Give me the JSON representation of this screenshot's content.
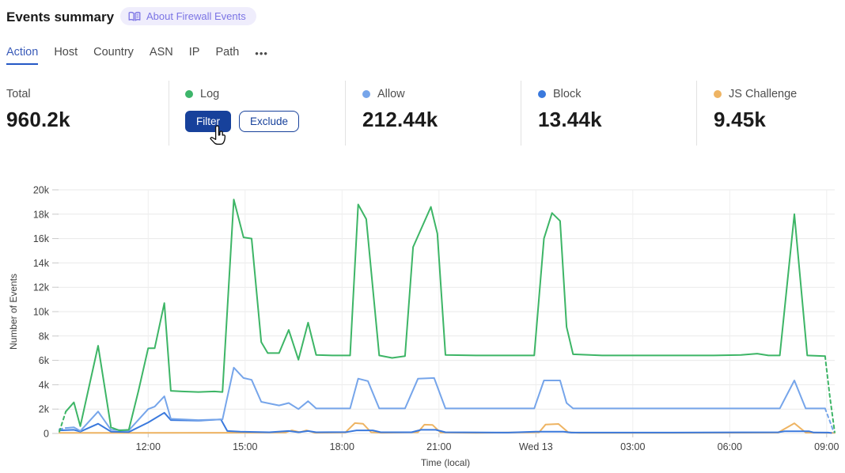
{
  "header": {
    "title": "Events summary",
    "badge": {
      "label": "About Firewall Events",
      "icon": "book-icon",
      "bg": "#efedfc",
      "color": "#7b74e4"
    }
  },
  "tabs": {
    "items": [
      {
        "label": "Action",
        "active": true
      },
      {
        "label": "Host",
        "active": false
      },
      {
        "label": "Country",
        "active": false
      },
      {
        "label": "ASN",
        "active": false
      },
      {
        "label": "IP",
        "active": false
      },
      {
        "label": "Path",
        "active": false
      }
    ],
    "more_label": "•••",
    "active_color": "#2458c5"
  },
  "stats": {
    "cards": [
      {
        "label": "Total",
        "value": "960.2k"
      },
      {
        "label": "Log",
        "dot_color": "#3db56a",
        "buttons": [
          {
            "label": "Filter",
            "style": "primary"
          },
          {
            "label": "Exclude",
            "style": "secondary"
          }
        ]
      },
      {
        "label": "Allow",
        "dot_color": "#76a5ea",
        "value": "212.44k"
      },
      {
        "label": "Block",
        "dot_color": "#3a79dd",
        "value": "13.44k"
      },
      {
        "label": "JS Challenge",
        "dot_color": "#eeb463",
        "value": "9.45k"
      }
    ],
    "button_blue": "#17419b"
  },
  "chart_data": {
    "type": "line",
    "title": "",
    "xlabel": "Time (local)",
    "ylabel": "Number of Events",
    "ylim": [
      0,
      20000
    ],
    "values_unit": "thousands of events",
    "x_unit": "hours from chart start (approx 09:15 local, spans 24h)",
    "grid": true,
    "legend_position": "stat-cards above chart",
    "y_ticks": [
      {
        "v": 0,
        "label": "0"
      },
      {
        "v": 2,
        "label": "2k"
      },
      {
        "v": 4,
        "label": "4k"
      },
      {
        "v": 6,
        "label": "6k"
      },
      {
        "v": 8,
        "label": "8k"
      },
      {
        "v": 10,
        "label": "10k"
      },
      {
        "v": 12,
        "label": "12k"
      },
      {
        "v": 14,
        "label": "14k"
      },
      {
        "v": 16,
        "label": "16k"
      },
      {
        "v": 18,
        "label": "18k"
      },
      {
        "v": 20,
        "label": "20k"
      }
    ],
    "x_ticks": [
      {
        "h": 2.75,
        "label": "12:00"
      },
      {
        "h": 5.75,
        "label": "15:00"
      },
      {
        "h": 8.75,
        "label": "18:00"
      },
      {
        "h": 11.75,
        "label": "21:00"
      },
      {
        "h": 14.75,
        "label": "Wed 13"
      },
      {
        "h": 17.75,
        "label": "03:00"
      },
      {
        "h": 20.75,
        "label": "06:00"
      },
      {
        "h": 23.75,
        "label": "09:00"
      }
    ],
    "series": [
      {
        "name": "JS Challenge",
        "color": "#eeb463",
        "points": [
          [
            0,
            0.05
          ],
          [
            2.0,
            0.05
          ],
          [
            5.0,
            0.06
          ],
          [
            7.0,
            0.08
          ],
          [
            7.2,
            0.25
          ],
          [
            7.45,
            0.1
          ],
          [
            7.65,
            0.25
          ],
          [
            7.9,
            0.06
          ],
          [
            8.85,
            0.08
          ],
          [
            9.15,
            0.85
          ],
          [
            9.4,
            0.8
          ],
          [
            9.65,
            0.1
          ],
          [
            10.0,
            0.06
          ],
          [
            11.1,
            0.1
          ],
          [
            11.3,
            0.72
          ],
          [
            11.55,
            0.7
          ],
          [
            11.8,
            0.08
          ],
          [
            12.9,
            0.05
          ],
          [
            14.85,
            0.1
          ],
          [
            15.05,
            0.73
          ],
          [
            15.45,
            0.78
          ],
          [
            15.75,
            0.1
          ],
          [
            16.1,
            0.05
          ],
          [
            19.0,
            0.05
          ],
          [
            22.25,
            0.07
          ],
          [
            22.75,
            0.84
          ],
          [
            23.1,
            0.07
          ],
          [
            24.0,
            0.05
          ]
        ]
      },
      {
        "name": "Block",
        "color": "#3a79dd",
        "dash_from": 23.8,
        "points": [
          [
            0,
            0.25
          ],
          [
            0.45,
            0.3
          ],
          [
            0.65,
            0.15
          ],
          [
            1.2,
            0.8
          ],
          [
            1.6,
            0.15
          ],
          [
            2.15,
            0.12
          ],
          [
            2.75,
            0.9
          ],
          [
            3.25,
            1.7
          ],
          [
            3.45,
            1.1
          ],
          [
            4.3,
            1.05
          ],
          [
            5.0,
            1.15
          ],
          [
            5.2,
            0.2
          ],
          [
            5.6,
            0.15
          ],
          [
            6.5,
            0.1
          ],
          [
            7.1,
            0.2
          ],
          [
            7.4,
            0.1
          ],
          [
            7.7,
            0.2
          ],
          [
            7.95,
            0.1
          ],
          [
            8.9,
            0.12
          ],
          [
            9.2,
            0.25
          ],
          [
            9.7,
            0.25
          ],
          [
            9.95,
            0.1
          ],
          [
            10.9,
            0.1
          ],
          [
            11.2,
            0.3
          ],
          [
            11.65,
            0.3
          ],
          [
            11.95,
            0.1
          ],
          [
            13.9,
            0.07
          ],
          [
            14.75,
            0.15
          ],
          [
            15.6,
            0.15
          ],
          [
            15.85,
            0.07
          ],
          [
            19.0,
            0.07
          ],
          [
            22.25,
            0.1
          ],
          [
            22.45,
            0.18
          ],
          [
            23.2,
            0.18
          ],
          [
            23.35,
            0.08
          ],
          [
            23.8,
            0.07
          ],
          [
            23.95,
            0.02
          ]
        ]
      },
      {
        "name": "Allow",
        "color": "#76a5ea",
        "dash_until": 0.2,
        "dash_from": 23.7,
        "points": [
          [
            0,
            0.35
          ],
          [
            0.2,
            0.45
          ],
          [
            0.45,
            0.5
          ],
          [
            0.65,
            0.2
          ],
          [
            1.2,
            1.8
          ],
          [
            1.6,
            0.3
          ],
          [
            2.15,
            0.25
          ],
          [
            2.75,
            2.0
          ],
          [
            2.95,
            2.2
          ],
          [
            3.25,
            3.05
          ],
          [
            3.45,
            1.2
          ],
          [
            4.3,
            1.1
          ],
          [
            5.05,
            1.15
          ],
          [
            5.4,
            5.4
          ],
          [
            5.7,
            4.55
          ],
          [
            5.95,
            4.4
          ],
          [
            6.25,
            2.6
          ],
          [
            6.8,
            2.3
          ],
          [
            7.1,
            2.5
          ],
          [
            7.4,
            2.0
          ],
          [
            7.7,
            2.65
          ],
          [
            7.95,
            2.05
          ],
          [
            9.0,
            2.05
          ],
          [
            9.25,
            4.5
          ],
          [
            9.55,
            4.3
          ],
          [
            9.9,
            2.05
          ],
          [
            10.7,
            2.05
          ],
          [
            11.1,
            4.5
          ],
          [
            11.6,
            4.55
          ],
          [
            11.95,
            2.05
          ],
          [
            12.9,
            2.05
          ],
          [
            14.7,
            2.05
          ],
          [
            15.0,
            4.35
          ],
          [
            15.5,
            4.35
          ],
          [
            15.7,
            2.5
          ],
          [
            15.9,
            2.05
          ],
          [
            17.8,
            2.05
          ],
          [
            20.25,
            2.05
          ],
          [
            22.3,
            2.05
          ],
          [
            22.75,
            4.35
          ],
          [
            23.1,
            2.05
          ],
          [
            23.7,
            2.05
          ],
          [
            23.85,
            1.0
          ],
          [
            23.97,
            0.1
          ]
        ]
      },
      {
        "name": "Log",
        "color": "#3db566",
        "dash_until": 0.2,
        "dash_from": 23.7,
        "points": [
          [
            0,
            0.15
          ],
          [
            0.2,
            1.8
          ],
          [
            0.45,
            2.55
          ],
          [
            0.65,
            0.6
          ],
          [
            1.2,
            7.2
          ],
          [
            1.6,
            0.5
          ],
          [
            1.85,
            0.25
          ],
          [
            2.15,
            0.3
          ],
          [
            2.45,
            3.5
          ],
          [
            2.75,
            7.0
          ],
          [
            2.95,
            7.0
          ],
          [
            3.25,
            10.7
          ],
          [
            3.45,
            3.5
          ],
          [
            3.8,
            3.45
          ],
          [
            4.3,
            3.4
          ],
          [
            4.8,
            3.45
          ],
          [
            5.05,
            3.4
          ],
          [
            5.4,
            19.2
          ],
          [
            5.7,
            16.1
          ],
          [
            5.95,
            16.0
          ],
          [
            6.25,
            7.5
          ],
          [
            6.45,
            6.6
          ],
          [
            6.8,
            6.6
          ],
          [
            7.1,
            8.5
          ],
          [
            7.4,
            6.05
          ],
          [
            7.7,
            9.1
          ],
          [
            7.95,
            6.45
          ],
          [
            8.45,
            6.4
          ],
          [
            9.0,
            6.4
          ],
          [
            9.25,
            18.8
          ],
          [
            9.5,
            17.6
          ],
          [
            9.9,
            6.4
          ],
          [
            10.3,
            6.2
          ],
          [
            10.7,
            6.35
          ],
          [
            10.95,
            15.3
          ],
          [
            11.5,
            18.6
          ],
          [
            11.7,
            16.4
          ],
          [
            11.95,
            6.45
          ],
          [
            12.9,
            6.4
          ],
          [
            13.85,
            6.4
          ],
          [
            14.7,
            6.4
          ],
          [
            15.0,
            16.0
          ],
          [
            15.25,
            18.1
          ],
          [
            15.5,
            17.45
          ],
          [
            15.7,
            8.75
          ],
          [
            15.9,
            6.5
          ],
          [
            16.8,
            6.4
          ],
          [
            17.8,
            6.4
          ],
          [
            19.0,
            6.4
          ],
          [
            20.25,
            6.4
          ],
          [
            21.1,
            6.45
          ],
          [
            21.6,
            6.55
          ],
          [
            21.95,
            6.4
          ],
          [
            22.3,
            6.4
          ],
          [
            22.75,
            18.0
          ],
          [
            23.15,
            6.4
          ],
          [
            23.7,
            6.35
          ],
          [
            23.85,
            3.0
          ],
          [
            24.0,
            0.1
          ]
        ]
      }
    ]
  }
}
